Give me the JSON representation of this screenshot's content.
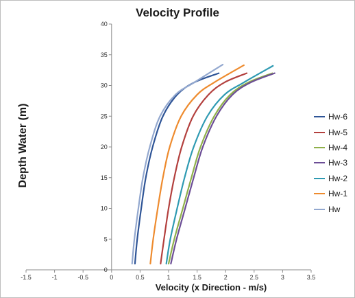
{
  "chart_data": {
    "type": "line",
    "title": "Velocity Profile",
    "xlabel": "Velocity (x Direction - m/s)",
    "ylabel": "Depth Water (m)",
    "xlim": [
      -1.5,
      3.5
    ],
    "ylim": [
      0,
      40
    ],
    "x_ticks": [
      "-1.5",
      "-1",
      "-0.5",
      "0",
      "0.5",
      "1",
      "1.5",
      "2",
      "2.5",
      "3",
      "3.5"
    ],
    "y_ticks": [
      "0",
      "5",
      "10",
      "15",
      "20",
      "25",
      "30",
      "35",
      "40"
    ],
    "grid": false,
    "legend_position": "right",
    "series": [
      {
        "name": "Hw-6",
        "color": "#2f5597",
        "points": [
          [
            0.41,
            1
          ],
          [
            0.45,
            5
          ],
          [
            0.52,
            10
          ],
          [
            0.6,
            15
          ],
          [
            0.72,
            20
          ],
          [
            0.9,
            25
          ],
          [
            1.15,
            28.5
          ],
          [
            1.45,
            30.5
          ],
          [
            1.88,
            32
          ]
        ]
      },
      {
        "name": "Hw-5",
        "color": "#b3403e",
        "points": [
          [
            0.86,
            1
          ],
          [
            0.92,
            5
          ],
          [
            1.0,
            10
          ],
          [
            1.1,
            15
          ],
          [
            1.23,
            20
          ],
          [
            1.43,
            25
          ],
          [
            1.7,
            28.5
          ],
          [
            1.98,
            30.5
          ],
          [
            2.37,
            32
          ]
        ]
      },
      {
        "name": "Hw-4",
        "color": "#8fb04a",
        "points": [
          [
            1.0,
            1
          ],
          [
            1.1,
            5
          ],
          [
            1.25,
            10
          ],
          [
            1.4,
            15
          ],
          [
            1.56,
            20
          ],
          [
            1.8,
            25
          ],
          [
            2.08,
            28.5
          ],
          [
            2.4,
            30.5
          ],
          [
            2.82,
            32
          ]
        ]
      },
      {
        "name": "Hw-3",
        "color": "#6c4e96",
        "points": [
          [
            1.04,
            1
          ],
          [
            1.14,
            5
          ],
          [
            1.29,
            10
          ],
          [
            1.44,
            15
          ],
          [
            1.6,
            20
          ],
          [
            1.84,
            25
          ],
          [
            2.12,
            28.5
          ],
          [
            2.44,
            30.5
          ],
          [
            2.86,
            32
          ]
        ]
      },
      {
        "name": "Hw-2",
        "color": "#2e9ab2",
        "points": [
          [
            0.96,
            1
          ],
          [
            1.03,
            5
          ],
          [
            1.15,
            10
          ],
          [
            1.28,
            15
          ],
          [
            1.44,
            20
          ],
          [
            1.68,
            25
          ],
          [
            1.98,
            28.5
          ],
          [
            2.32,
            30.5
          ],
          [
            2.83,
            33.2
          ]
        ]
      },
      {
        "name": "Hw-1",
        "color": "#ee8b2e",
        "points": [
          [
            0.68,
            1
          ],
          [
            0.73,
            5
          ],
          [
            0.81,
            10
          ],
          [
            0.9,
            15
          ],
          [
            1.02,
            20
          ],
          [
            1.22,
            25
          ],
          [
            1.5,
            28.5
          ],
          [
            1.8,
            30.5
          ],
          [
            2.32,
            33.3
          ]
        ]
      },
      {
        "name": "Hw",
        "color": "#93a8cf",
        "points": [
          [
            0.36,
            1
          ],
          [
            0.4,
            5
          ],
          [
            0.47,
            10
          ],
          [
            0.55,
            15
          ],
          [
            0.67,
            20
          ],
          [
            0.85,
            25
          ],
          [
            1.12,
            28.5
          ],
          [
            1.45,
            30.5
          ],
          [
            1.95,
            33.4
          ]
        ]
      }
    ]
  }
}
